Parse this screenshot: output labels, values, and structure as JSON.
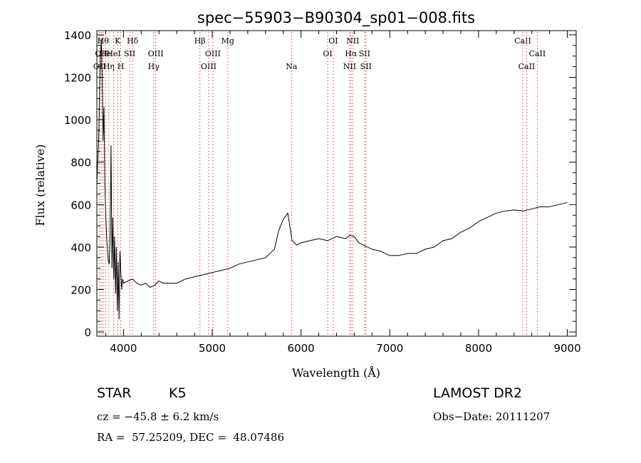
{
  "chart_data": {
    "type": "line",
    "title": "spec−55903−B90304_sp01−008.fits",
    "xlabel": "Wavelength (Å)",
    "ylabel": "Flux (relative)",
    "xlim": [
      3700,
      9100
    ],
    "ylim": [
      -20,
      1420
    ],
    "x_ticks": [
      4000,
      5000,
      6000,
      7000,
      8000,
      9000
    ],
    "y_ticks": [
      0,
      200,
      400,
      600,
      800,
      1000,
      1200,
      1400
    ],
    "grid": false,
    "legend": "none",
    "series": [
      {
        "line_color": "#000000",
        "x": [
          3700,
          3720,
          3740,
          3750,
          3760,
          3770,
          3780,
          3790,
          3800,
          3810,
          3820,
          3830,
          3840,
          3850,
          3860,
          3870,
          3880,
          3890,
          3900,
          3910,
          3920,
          3930,
          3940,
          3950,
          3960,
          3970,
          3980,
          3990,
          4000,
          4050,
          4100,
          4150,
          4200,
          4250,
          4300,
          4350,
          4400,
          4450,
          4500,
          4600,
          4700,
          4800,
          4900,
          5000,
          5100,
          5200,
          5300,
          5400,
          5500,
          5600,
          5700,
          5750,
          5800,
          5850,
          5900,
          5950,
          6000,
          6100,
          6200,
          6300,
          6400,
          6500,
          6550,
          6600,
          6650,
          6700,
          6800,
          6900,
          7000,
          7100,
          7200,
          7300,
          7400,
          7500,
          7600,
          7700,
          7800,
          7900,
          8000,
          8100,
          8200,
          8300,
          8400,
          8500,
          8600,
          8700,
          8800,
          8900,
          9000
        ],
        "y": [
          700,
          900,
          1300,
          1380,
          1200,
          900,
          1060,
          700,
          550,
          450,
          380,
          330,
          320,
          480,
          880,
          300,
          540,
          250,
          450,
          180,
          400,
          100,
          330,
          60,
          380,
          280,
          200,
          250,
          230,
          240,
          250,
          230,
          220,
          230,
          210,
          220,
          240,
          230,
          230,
          230,
          250,
          260,
          270,
          280,
          290,
          300,
          320,
          330,
          340,
          350,
          390,
          480,
          530,
          560,
          430,
          410,
          420,
          430,
          440,
          430,
          450,
          440,
          455,
          450,
          420,
          410,
          390,
          380,
          360,
          360,
          370,
          370,
          390,
          400,
          430,
          440,
          470,
          490,
          520,
          540,
          560,
          570,
          575,
          570,
          580,
          590,
          590,
          600,
          610
        ]
      }
    ],
    "lines": [
      {
        "x": 3730,
        "label": "OII",
        "row": 2
      },
      {
        "x": 3750,
        "label": "OII",
        "row": 1
      },
      {
        "x": 3770,
        "label": "Hθ",
        "row": 0
      },
      {
        "x": 3798,
        "label": "He",
        "row": 1
      },
      {
        "x": 3835,
        "label": "Hη",
        "row": 2
      },
      {
        "x": 3889,
        "label": "HeI",
        "row": 1
      },
      {
        "x": 3934,
        "label": "K",
        "row": 0
      },
      {
        "x": 3969,
        "label": "H",
        "row": 2
      },
      {
        "x": 4070,
        "label": "SII",
        "row": 1
      },
      {
        "x": 4102,
        "label": "Hδ",
        "row": 0
      },
      {
        "x": 4340,
        "label": "Hγ",
        "row": 2
      },
      {
        "x": 4363,
        "label": "OIII",
        "row": 1
      },
      {
        "x": 4861,
        "label": "Hβ",
        "row": 0
      },
      {
        "x": 4959,
        "label": "OIII",
        "row": 2
      },
      {
        "x": 5007,
        "label": "OIII",
        "row": 1
      },
      {
        "x": 5175,
        "label": "Mg",
        "row": 0
      },
      {
        "x": 5893,
        "label": "Na",
        "row": 2
      },
      {
        "x": 6300,
        "label": "OI",
        "row": 1
      },
      {
        "x": 6363,
        "label": "OI",
        "row": 0
      },
      {
        "x": 6548,
        "label": "NII",
        "row": 2
      },
      {
        "x": 6563,
        "label": "Hα",
        "row": 1
      },
      {
        "x": 6583,
        "label": "NII",
        "row": 0
      },
      {
        "x": 6716,
        "label": "SII",
        "row": 1
      },
      {
        "x": 6731,
        "label": "SII",
        "row": 2
      },
      {
        "x": 8498,
        "label": "CaII",
        "row": 0
      },
      {
        "x": 8542,
        "label": "CaII",
        "row": 2
      },
      {
        "x": 8662,
        "label": "CaII",
        "row": 1
      }
    ]
  },
  "info": {
    "object_class": "STAR",
    "subclass": "K5",
    "survey": "LAMOST DR2",
    "redshift": "cz = −45.8 ± 6.2 km/s",
    "obs_date": "Obs−Date: 20111207",
    "coords": "RA =  57.25209, DEC =  48.07486"
  }
}
